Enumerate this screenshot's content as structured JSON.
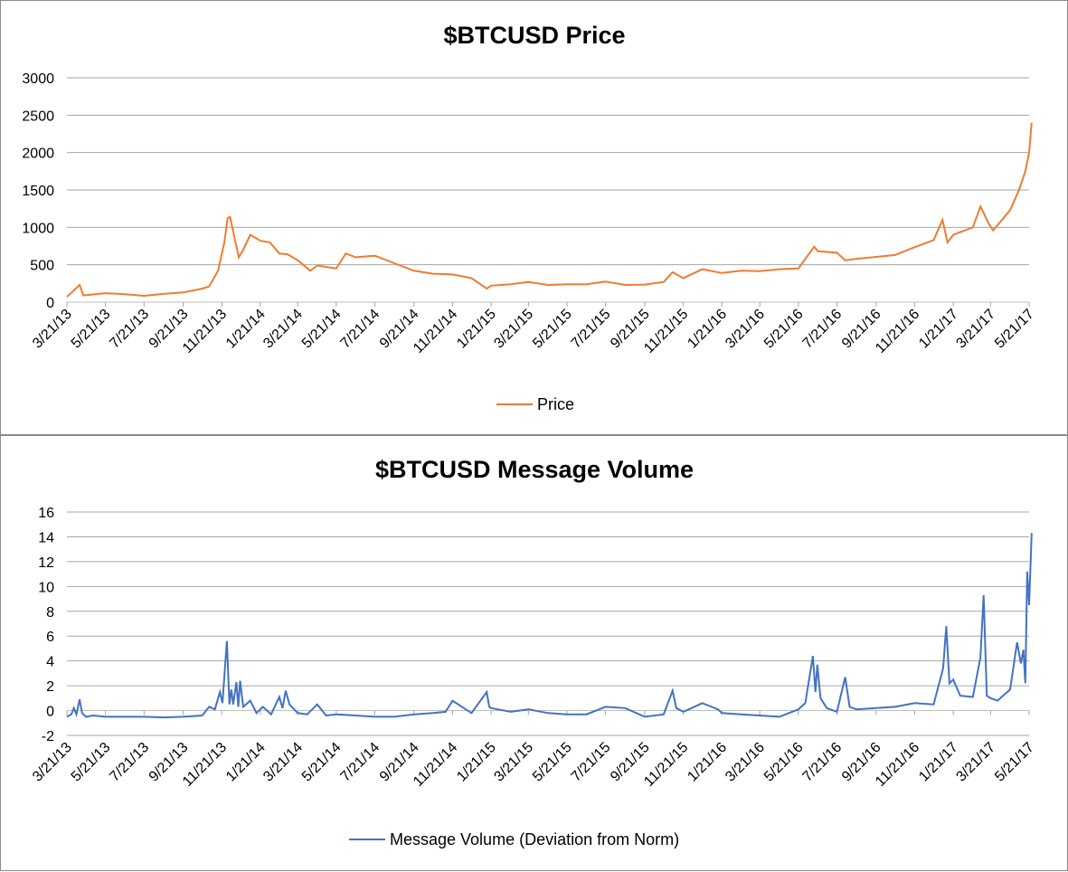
{
  "chart_data": [
    {
      "type": "line",
      "title": "$BTCUSD Price",
      "xlabel": "",
      "ylabel": "",
      "ylim": [
        0,
        3000
      ],
      "yticks": [
        "0",
        "500",
        "1000",
        "1500",
        "2000",
        "2500",
        "3000"
      ],
      "xtick_labels": [
        "3/21/13",
        "5/21/13",
        "7/21/13",
        "9/21/13",
        "11/21/13",
        "1/21/14",
        "3/21/14",
        "5/21/14",
        "7/21/14",
        "9/21/14",
        "11/21/14",
        "1/21/15",
        "3/21/15",
        "5/21/15",
        "7/21/15",
        "9/21/15",
        "11/21/15",
        "1/21/16",
        "3/21/16",
        "5/21/16",
        "7/21/16",
        "9/21/16",
        "11/21/16",
        "1/21/17",
        "3/21/17",
        "5/21/17"
      ],
      "grid": true,
      "legend_position": "bottom",
      "series": [
        {
          "name": "Price",
          "color": "#ED7D31",
          "points": [
            [
              "3/21/13",
              70
            ],
            [
              "4/10/13",
              230
            ],
            [
              "4/16/13",
              90
            ],
            [
              "5/21/13",
              120
            ],
            [
              "6/21/13",
              105
            ],
            [
              "7/21/13",
              85
            ],
            [
              "8/21/13",
              110
            ],
            [
              "9/21/13",
              130
            ],
            [
              "10/21/13",
              180
            ],
            [
              "11/1/13",
              210
            ],
            [
              "11/15/13",
              420
            ],
            [
              "11/25/13",
              800
            ],
            [
              "11/30/13",
              1120
            ],
            [
              "12/4/13",
              1140
            ],
            [
              "12/10/13",
              900
            ],
            [
              "12/18/13",
              600
            ],
            [
              "12/25/13",
              700
            ],
            [
              "1/5/14",
              900
            ],
            [
              "1/21/14",
              820
            ],
            [
              "2/5/14",
              800
            ],
            [
              "2/20/14",
              650
            ],
            [
              "3/5/14",
              640
            ],
            [
              "3/21/14",
              560
            ],
            [
              "4/10/14",
              420
            ],
            [
              "4/21/14",
              490
            ],
            [
              "5/21/14",
              450
            ],
            [
              "6/5/14",
              650
            ],
            [
              "6/21/14",
              600
            ],
            [
              "7/21/14",
              620
            ],
            [
              "8/21/14",
              520
            ],
            [
              "9/21/14",
              420
            ],
            [
              "10/21/14",
              380
            ],
            [
              "11/21/14",
              370
            ],
            [
              "12/21/14",
              320
            ],
            [
              "1/14/15",
              180
            ],
            [
              "1/21/15",
              220
            ],
            [
              "2/21/15",
              240
            ],
            [
              "3/21/15",
              270
            ],
            [
              "4/21/15",
              230
            ],
            [
              "5/21/15",
              240
            ],
            [
              "6/21/15",
              240
            ],
            [
              "7/21/15",
              275
            ],
            [
              "8/21/15",
              230
            ],
            [
              "9/21/15",
              235
            ],
            [
              "10/21/15",
              270
            ],
            [
              "11/4/15",
              400
            ],
            [
              "11/21/15",
              320
            ],
            [
              "12/21/15",
              440
            ],
            [
              "1/21/16",
              390
            ],
            [
              "2/21/16",
              420
            ],
            [
              "3/21/16",
              415
            ],
            [
              "4/21/16",
              440
            ],
            [
              "5/21/16",
              450
            ],
            [
              "6/15/16",
              740
            ],
            [
              "6/21/16",
              680
            ],
            [
              "7/21/16",
              660
            ],
            [
              "8/3/16",
              560
            ],
            [
              "8/21/16",
              580
            ],
            [
              "9/21/16",
              605
            ],
            [
              "10/21/16",
              630
            ],
            [
              "11/21/16",
              735
            ],
            [
              "12/21/16",
              830
            ],
            [
              "1/4/17",
              1100
            ],
            [
              "1/12/17",
              800
            ],
            [
              "1/21/17",
              900
            ],
            [
              "2/21/17",
              1000
            ],
            [
              "3/5/17",
              1280
            ],
            [
              "3/18/17",
              1050
            ],
            [
              "3/25/17",
              960
            ],
            [
              "4/21/17",
              1230
            ],
            [
              "5/5/17",
              1500
            ],
            [
              "5/15/17",
              1750
            ],
            [
              "5/21/17",
              2000
            ],
            [
              "5/25/17",
              2400
            ]
          ]
        }
      ]
    },
    {
      "type": "line",
      "title": "$BTCUSD Message Volume",
      "xlabel": "",
      "ylabel": "",
      "ylim": [
        -2,
        16
      ],
      "yticks": [
        "-2",
        "0",
        "2",
        "4",
        "6",
        "8",
        "10",
        "12",
        "14",
        "16"
      ],
      "xtick_labels": [
        "3/21/13",
        "5/21/13",
        "7/21/13",
        "9/21/13",
        "11/21/13",
        "1/21/14",
        "3/21/14",
        "5/21/14",
        "7/21/14",
        "9/21/14",
        "11/21/14",
        "1/21/15",
        "3/21/15",
        "5/21/15",
        "7/21/15",
        "9/21/15",
        "11/21/15",
        "1/21/16",
        "3/21/16",
        "5/21/16",
        "7/21/16",
        "9/21/16",
        "11/21/16",
        "1/21/17",
        "3/21/17",
        "5/21/17"
      ],
      "grid": true,
      "legend_position": "bottom",
      "series": [
        {
          "name": "Message Volume (Deviation from Norm)",
          "color": "#4472C4",
          "points": [
            [
              "3/21/13",
              -0.5
            ],
            [
              "3/28/13",
              -0.3
            ],
            [
              "4/1/13",
              0.2
            ],
            [
              "4/5/13",
              -0.3
            ],
            [
              "4/10/13",
              0.9
            ],
            [
              "4/14/13",
              -0.2
            ],
            [
              "4/20/13",
              -0.5
            ],
            [
              "5/1/13",
              -0.4
            ],
            [
              "5/21/13",
              -0.5
            ],
            [
              "6/21/13",
              -0.5
            ],
            [
              "7/21/13",
              -0.5
            ],
            [
              "8/21/13",
              -0.55
            ],
            [
              "9/21/13",
              -0.5
            ],
            [
              "10/21/13",
              -0.4
            ],
            [
              "11/1/13",
              0.3
            ],
            [
              "11/10/13",
              0.1
            ],
            [
              "11/18/13",
              1.5
            ],
            [
              "11/22/13",
              0.6
            ],
            [
              "11/29/13",
              5.6
            ],
            [
              "12/3/13",
              0.5
            ],
            [
              "12/6/13",
              1.7
            ],
            [
              "12/9/13",
              0.5
            ],
            [
              "12/14/13",
              2.3
            ],
            [
              "12/17/13",
              0.3
            ],
            [
              "12/20/13",
              2.4
            ],
            [
              "12/25/13",
              0.3
            ],
            [
              "1/5/14",
              0.8
            ],
            [
              "1/15/14",
              -0.2
            ],
            [
              "1/25/14",
              0.3
            ],
            [
              "2/7/14",
              -0.3
            ],
            [
              "2/20/14",
              1.1
            ],
            [
              "2/25/14",
              0.2
            ],
            [
              "3/2/14",
              1.6
            ],
            [
              "3/8/14",
              0.5
            ],
            [
              "3/21/14",
              -0.2
            ],
            [
              "4/5/14",
              -0.3
            ],
            [
              "4/21/14",
              0.5
            ],
            [
              "5/5/14",
              -0.4
            ],
            [
              "5/21/14",
              -0.3
            ],
            [
              "6/21/14",
              -0.4
            ],
            [
              "7/21/14",
              -0.5
            ],
            [
              "8/21/14",
              -0.5
            ],
            [
              "9/21/14",
              -0.3
            ],
            [
              "10/21/14",
              -0.2
            ],
            [
              "11/10/14",
              -0.1
            ],
            [
              "11/21/14",
              0.8
            ],
            [
              "12/21/14",
              -0.2
            ],
            [
              "1/14/15",
              1.5
            ],
            [
              "1/18/15",
              0.3
            ],
            [
              "1/21/15",
              0.2
            ],
            [
              "2/21/15",
              -0.1
            ],
            [
              "3/21/15",
              0.1
            ],
            [
              "4/21/15",
              -0.2
            ],
            [
              "5/21/15",
              -0.3
            ],
            [
              "6/21/15",
              -0.3
            ],
            [
              "7/21/15",
              0.3
            ],
            [
              "8/21/15",
              0.2
            ],
            [
              "9/21/15",
              -0.5
            ],
            [
              "10/21/15",
              -0.3
            ],
            [
              "11/4/15",
              1.6
            ],
            [
              "11/10/15",
              0.2
            ],
            [
              "11/21/15",
              -0.1
            ],
            [
              "12/21/15",
              0.6
            ],
            [
              "1/15/16",
              0.1
            ],
            [
              "1/21/16",
              -0.2
            ],
            [
              "2/21/16",
              -0.3
            ],
            [
              "3/21/16",
              -0.4
            ],
            [
              "4/21/16",
              -0.5
            ],
            [
              "5/21/16",
              0.1
            ],
            [
              "6/1/16",
              0.6
            ],
            [
              "6/13/16",
              4.4
            ],
            [
              "6/17/16",
              1.5
            ],
            [
              "6/20/16",
              3.7
            ],
            [
              "6/25/16",
              1.0
            ],
            [
              "7/5/16",
              0.2
            ],
            [
              "7/21/16",
              -0.1
            ],
            [
              "8/3/16",
              2.7
            ],
            [
              "8/10/16",
              0.3
            ],
            [
              "8/21/16",
              0.1
            ],
            [
              "9/21/16",
              0.2
            ],
            [
              "10/21/16",
              0.3
            ],
            [
              "11/21/16",
              0.6
            ],
            [
              "12/21/16",
              0.5
            ],
            [
              "1/5/17",
              3.4
            ],
            [
              "1/10/17",
              6.8
            ],
            [
              "1/15/17",
              2.2
            ],
            [
              "1/21/17",
              2.5
            ],
            [
              "2/1/17",
              1.2
            ],
            [
              "2/21/17",
              1.1
            ],
            [
              "3/5/17",
              4.3
            ],
            [
              "3/10/17",
              9.3
            ],
            [
              "3/15/17",
              1.2
            ],
            [
              "3/21/17",
              1.0
            ],
            [
              "4/1/17",
              0.8
            ],
            [
              "4/21/17",
              1.7
            ],
            [
              "5/2/17",
              5.5
            ],
            [
              "5/8/17",
              3.8
            ],
            [
              "5/12/17",
              4.9
            ],
            [
              "5/15/17",
              2.2
            ],
            [
              "5/18/17",
              11.2
            ],
            [
              "5/21/17",
              8.5
            ],
            [
              "5/25/17",
              14.3
            ]
          ]
        }
      ]
    }
  ]
}
